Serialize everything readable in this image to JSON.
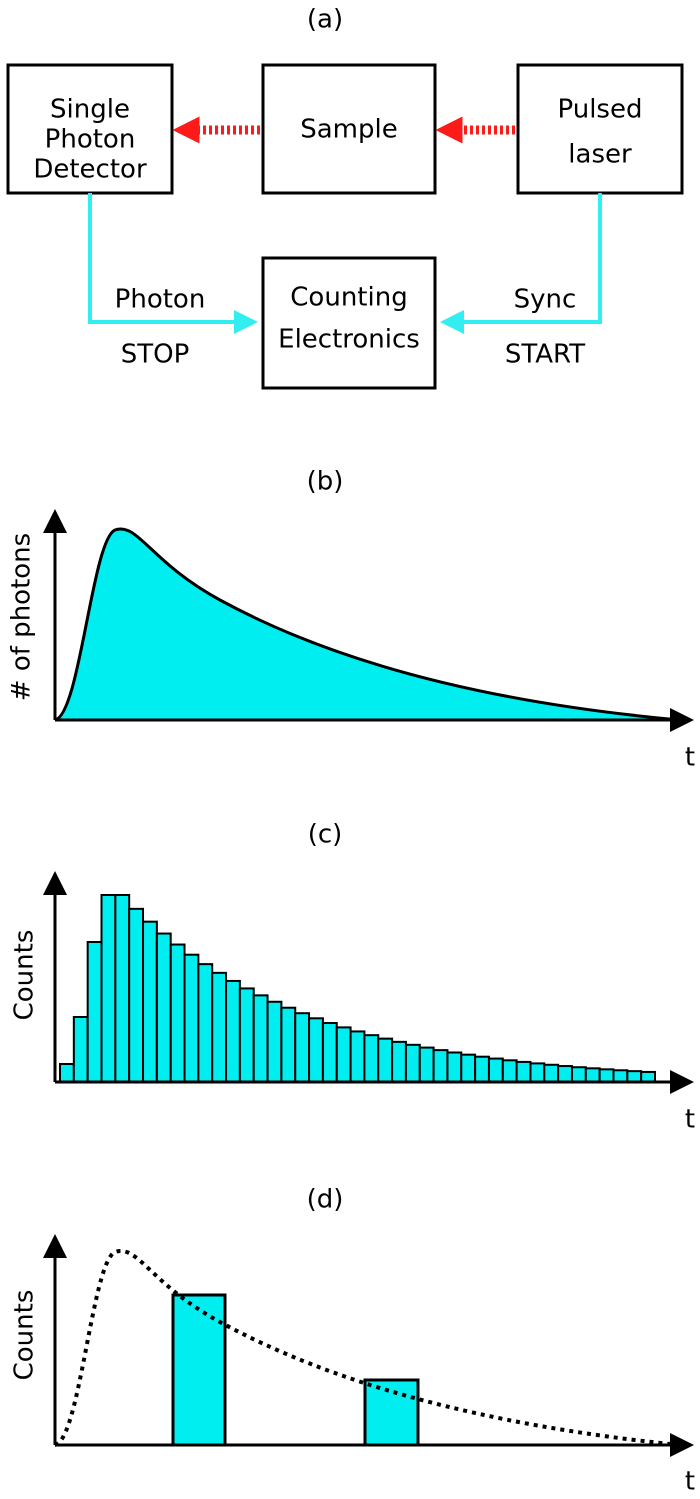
{
  "panel_a": {
    "label": "(a)",
    "nodes": [
      {
        "lines": [
          "Single",
          "Photon",
          "Detector"
        ]
      },
      {
        "lines": [
          "Sample"
        ]
      },
      {
        "lines": [
          "Pulsed",
          "laser"
        ]
      },
      {
        "lines": [
          "Counting",
          "Electronics"
        ]
      }
    ],
    "edges": [
      {
        "lines": [
          "Photon",
          "STOP"
        ]
      },
      {
        "lines": [
          "Sync",
          "START"
        ]
      }
    ]
  },
  "panel_b": {
    "label": "(b)",
    "y_label": "# of photons",
    "x_label": "t"
  },
  "panel_c": {
    "label": "(c)",
    "y_label": "Counts",
    "x_label": "t"
  },
  "panel_d": {
    "label": "(d)",
    "y_label": "Counts",
    "x_label": "t"
  }
}
